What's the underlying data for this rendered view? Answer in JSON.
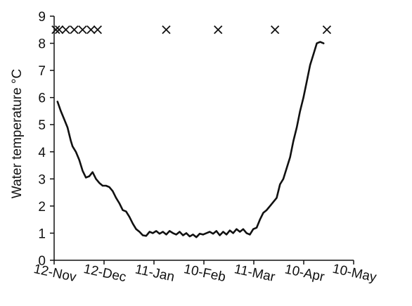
{
  "chart_data": {
    "type": "line",
    "title": "",
    "xlabel": "",
    "ylabel": "Water temperature °C",
    "x_ticks": [
      "12-Nov",
      "12-Dec",
      "11-Jan",
      "10-Feb",
      "11-Mar",
      "10-Apr",
      "10-May"
    ],
    "xlim": [
      "2020-11-12",
      "2021-05-10"
    ],
    "ylim": [
      0,
      9
    ],
    "y_ticks": [
      "0",
      "1",
      "2",
      "3",
      "4",
      "5",
      "6",
      "7",
      "8",
      "9"
    ],
    "grid": false,
    "legend": "none",
    "series": [
      {
        "style": "line",
        "color": "#111111",
        "points": [
          [
            "2020-11-14",
            5.85
          ],
          [
            "2020-11-16",
            5.5
          ],
          [
            "2020-11-18",
            5.2
          ],
          [
            "2020-11-20",
            4.9
          ],
          [
            "2020-11-22",
            4.4
          ],
          [
            "2020-11-23",
            4.2
          ],
          [
            "2020-11-25",
            4.0
          ],
          [
            "2020-11-27",
            3.7
          ],
          [
            "2020-11-29",
            3.3
          ],
          [
            "2020-12-01",
            3.05
          ],
          [
            "2020-12-03",
            3.1
          ],
          [
            "2020-12-05",
            3.25
          ],
          [
            "2020-12-07",
            3.0
          ],
          [
            "2020-12-09",
            2.85
          ],
          [
            "2020-12-11",
            2.75
          ],
          [
            "2020-12-13",
            2.75
          ],
          [
            "2020-12-15",
            2.7
          ],
          [
            "2020-12-17",
            2.55
          ],
          [
            "2020-12-19",
            2.3
          ],
          [
            "2020-12-21",
            2.1
          ],
          [
            "2020-12-23",
            1.85
          ],
          [
            "2020-12-25",
            1.8
          ],
          [
            "2020-12-27",
            1.6
          ],
          [
            "2020-12-29",
            1.35
          ],
          [
            "2020-12-31",
            1.15
          ],
          [
            "2021-01-02",
            1.05
          ],
          [
            "2021-01-04",
            0.92
          ],
          [
            "2021-01-06",
            0.9
          ],
          [
            "2021-01-08",
            1.05
          ],
          [
            "2021-01-10",
            1.0
          ],
          [
            "2021-01-12",
            1.08
          ],
          [
            "2021-01-14",
            0.98
          ],
          [
            "2021-01-16",
            1.05
          ],
          [
            "2021-01-18",
            0.95
          ],
          [
            "2021-01-20",
            1.08
          ],
          [
            "2021-01-22",
            1.0
          ],
          [
            "2021-01-24",
            0.95
          ],
          [
            "2021-01-26",
            1.05
          ],
          [
            "2021-01-28",
            0.92
          ],
          [
            "2021-01-30",
            1.0
          ],
          [
            "2021-02-01",
            0.88
          ],
          [
            "2021-02-03",
            0.95
          ],
          [
            "2021-02-05",
            0.85
          ],
          [
            "2021-02-07",
            0.98
          ],
          [
            "2021-02-09",
            0.95
          ],
          [
            "2021-02-11",
            1.0
          ],
          [
            "2021-02-13",
            1.05
          ],
          [
            "2021-02-15",
            0.98
          ],
          [
            "2021-02-17",
            1.08
          ],
          [
            "2021-02-19",
            0.92
          ],
          [
            "2021-02-21",
            1.05
          ],
          [
            "2021-02-23",
            0.95
          ],
          [
            "2021-02-25",
            1.1
          ],
          [
            "2021-02-27",
            1.0
          ],
          [
            "2021-03-01",
            1.15
          ],
          [
            "2021-03-03",
            1.05
          ],
          [
            "2021-03-05",
            1.15
          ],
          [
            "2021-03-07",
            1.0
          ],
          [
            "2021-03-09",
            0.95
          ],
          [
            "2021-03-11",
            1.15
          ],
          [
            "2021-03-13",
            1.2
          ],
          [
            "2021-03-15",
            1.5
          ],
          [
            "2021-03-17",
            1.75
          ],
          [
            "2021-03-19",
            1.85
          ],
          [
            "2021-03-21",
            2.0
          ],
          [
            "2021-03-23",
            2.15
          ],
          [
            "2021-03-25",
            2.3
          ],
          [
            "2021-03-27",
            2.8
          ],
          [
            "2021-03-29",
            3.0
          ],
          [
            "2021-03-31",
            3.4
          ],
          [
            "2021-04-02",
            3.8
          ],
          [
            "2021-04-04",
            4.4
          ],
          [
            "2021-04-06",
            4.9
          ],
          [
            "2021-04-08",
            5.5
          ],
          [
            "2021-04-10",
            6.0
          ],
          [
            "2021-04-12",
            6.6
          ],
          [
            "2021-04-14",
            7.2
          ],
          [
            "2021-04-16",
            7.6
          ],
          [
            "2021-04-18",
            8.0
          ],
          [
            "2021-04-20",
            8.05
          ],
          [
            "2021-04-22",
            8.0
          ]
        ]
      },
      {
        "style": "markers",
        "marker": "x",
        "color": "#111111",
        "points": [
          [
            "2020-11-13",
            8.5
          ],
          [
            "2020-11-15",
            8.5
          ],
          [
            "2020-11-19",
            8.5
          ],
          [
            "2020-11-24",
            8.5
          ],
          [
            "2020-11-29",
            8.5
          ],
          [
            "2020-12-04",
            8.5
          ],
          [
            "2020-12-08",
            8.5
          ],
          [
            "2021-01-18",
            8.5
          ],
          [
            "2021-02-18",
            8.5
          ],
          [
            "2021-03-24",
            8.5
          ],
          [
            "2021-04-24",
            8.5
          ]
        ]
      }
    ]
  }
}
